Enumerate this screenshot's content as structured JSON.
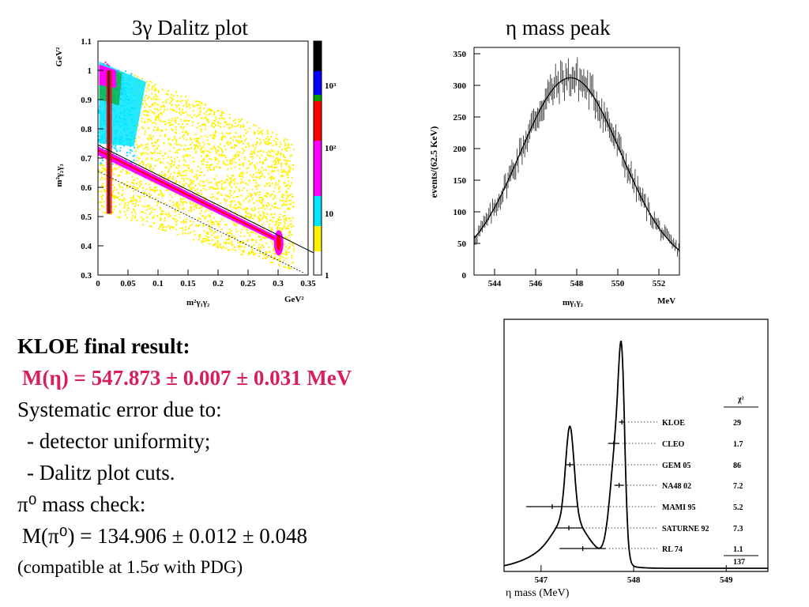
{
  "titles": {
    "dalitz": "3γ Dalitz plot",
    "mass": "η mass peak"
  },
  "result": {
    "heading": "KLOE final result:",
    "eta_mass": "M(η) = 547.873 ± 0.007 ± 0.031 MeV",
    "syst_heading": "Systematic error due to:",
    "syst_items": [
      "- detector uniformity;",
      "- Dalitz plot cuts."
    ],
    "pi0_heading": "π⁰ mass check:",
    "pi0_mass": "M(π⁰) = 134.906 ± 0.012 ± 0.048",
    "pi0_note": "(compatible at 1.5σ with PDG)"
  },
  "chart_data": [
    {
      "type": "heatmap",
      "name": "dalitz",
      "xlabel": "m²γ₁γ₂",
      "xunit": "GeV²",
      "ylabel": "m²γ₂γ₃",
      "yunit": "GeV²",
      "xlim": [
        0,
        0.35
      ],
      "ylim": [
        0.3,
        1.1
      ],
      "xticks": [
        "0",
        "0.05",
        "0.1",
        "0.15",
        "0.2",
        "0.25",
        "0.3",
        "0.35"
      ],
      "yticks": [
        "0.3",
        "0.4",
        "0.5",
        "0.6",
        "0.7",
        "0.8",
        "0.9",
        "1",
        "1.1"
      ],
      "colorscale_labels": [
        "1",
        "10",
        "10²",
        "10³"
      ],
      "colors": [
        "#ffffff",
        "#fff100",
        "#00e5ff",
        "#ff00ff",
        "#ff0000",
        "#00a000",
        "#0000ff",
        "#000000"
      ]
    },
    {
      "type": "line",
      "name": "eta_mass_peak",
      "xlabel": "mγ₁γ₂",
      "xunit": "MeV",
      "ylabel": "events/(62.5 KeV)",
      "xlim": [
        543,
        553
      ],
      "ylim": [
        0,
        360
      ],
      "xticks": [
        544,
        546,
        548,
        550,
        552
      ],
      "yticks": [
        0,
        50,
        100,
        150,
        200,
        250,
        300,
        350
      ],
      "peak": {
        "mean": 547.7,
        "height": 312,
        "sigma": 2.45,
        "background": 10
      }
    },
    {
      "type": "scatter",
      "name": "eta_mass_comparison",
      "xlabel": "η mass (MeV)",
      "xlim": [
        546.6,
        549.45
      ],
      "xticks": [
        547,
        548,
        549
      ],
      "chi2_header": "χ²",
      "chi2_total": "137",
      "measurements": [
        {
          "label": "KLOE",
          "mass": 547.873,
          "err": 0.032,
          "chi2": "29"
        },
        {
          "label": "CLEO",
          "mass": 547.785,
          "err": 0.06,
          "chi2": "1.7"
        },
        {
          "label": "GEM  05",
          "mass": 547.311,
          "err": 0.045,
          "chi2": "86"
        },
        {
          "label": "NA48 02",
          "mass": 547.843,
          "err": 0.051,
          "chi2": "7.2"
        },
        {
          "label": "MAMI 95",
          "mass": 547.12,
          "err": 0.28,
          "chi2": "5.2"
        },
        {
          "label": "SATURNE 92",
          "mass": 547.3,
          "err": 0.15,
          "chi2": "7.3"
        },
        {
          "label": "RL 74",
          "mass": 547.45,
          "err": 0.25,
          "chi2": "1.1"
        }
      ]
    }
  ]
}
